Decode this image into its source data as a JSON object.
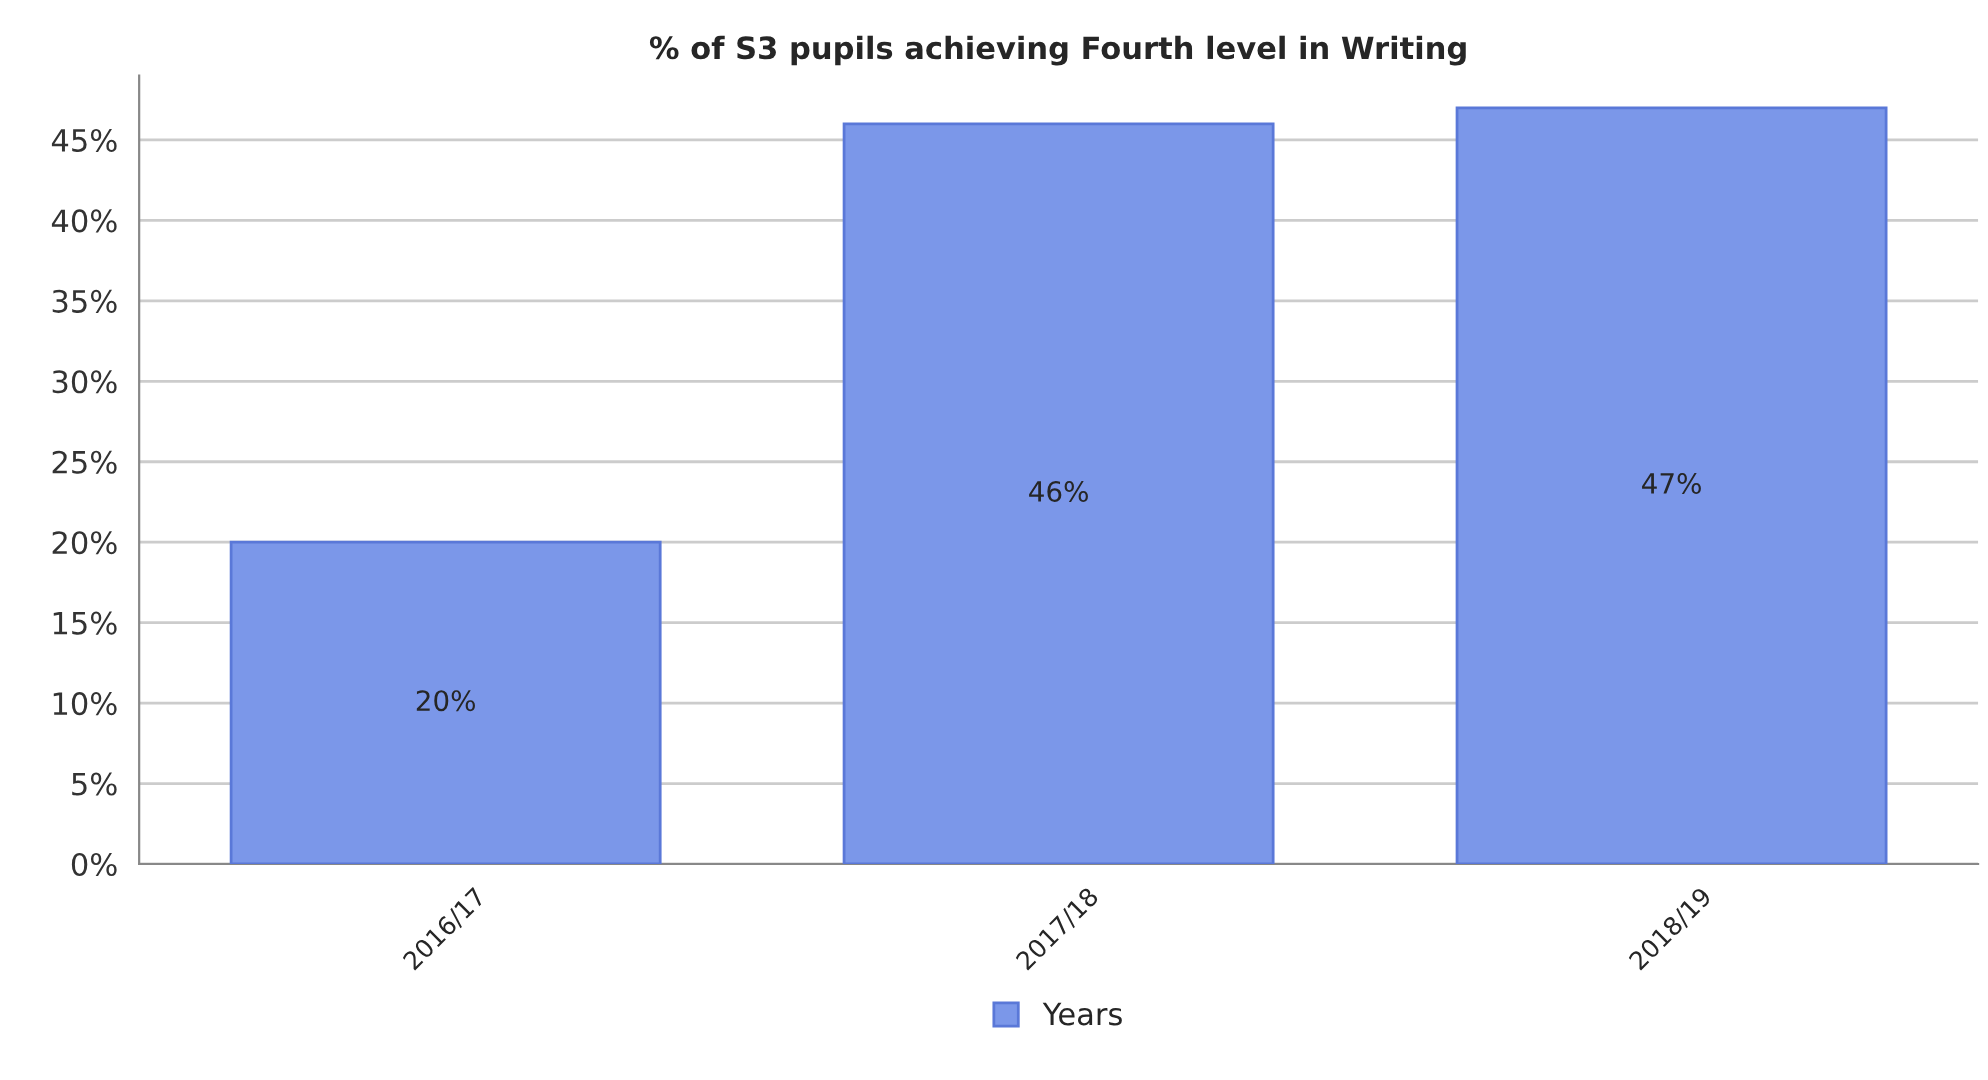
{
  "chart_data": {
    "type": "bar",
    "title": "% of S3 pupils achieving Fourth level in Writing",
    "categories": [
      "2016/17",
      "2017/18",
      "2018/19"
    ],
    "series": [
      {
        "name": "Years",
        "color": "#7b97e9",
        "values": [
          20,
          46,
          47
        ],
        "value_labels": [
          "20%",
          "46%",
          "47%"
        ]
      }
    ],
    "ylim": [
      0,
      49
    ],
    "yticks": [
      {
        "value": 0,
        "label": "0%"
      },
      {
        "value": 5,
        "label": "5%"
      },
      {
        "value": 10,
        "label": "10%"
      },
      {
        "value": 15,
        "label": "15%"
      },
      {
        "value": 20,
        "label": "20%"
      },
      {
        "value": 25,
        "label": "25%"
      },
      {
        "value": 30,
        "label": "30%"
      },
      {
        "value": 35,
        "label": "35%"
      },
      {
        "value": 40,
        "label": "40%"
      },
      {
        "value": 45,
        "label": "45%"
      }
    ],
    "grid": "y",
    "legend": "bottom"
  }
}
